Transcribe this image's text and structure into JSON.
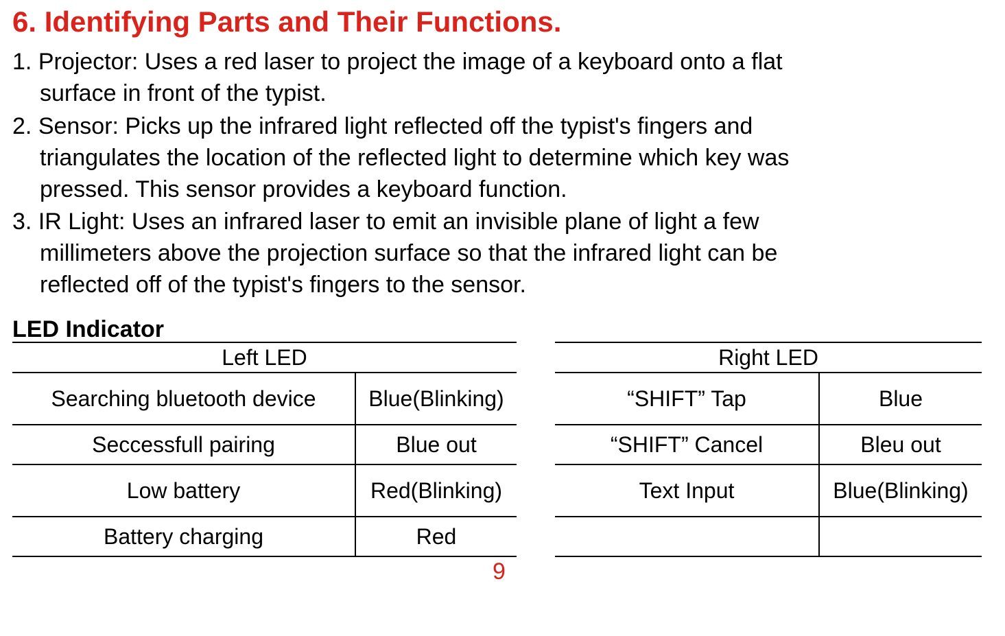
{
  "heading": "6. Identifying Parts and Their Functions.",
  "items": [
    {
      "num": "1. ",
      "line1": "Projector: Uses a red laser to project the image of a keyboard onto a flat",
      "line2": "surface in front of the typist."
    },
    {
      "num": "2. ",
      "line1": "Sensor: Picks up the infrared light reflected off the typist's fingers and",
      "line2": "triangulates the location of the reflected light to determine which key was",
      "line3": "pressed. This sensor provides a keyboard function."
    },
    {
      "num": "3. ",
      "line1": "IR Light: Uses an infrared laser to emit an invisible plane of light a few",
      "line2": "millimeters above the projection surface so that the infrared light can be",
      "line3": "reflected off of the typist's fingers to the sensor."
    }
  ],
  "subheading": "LED Indicator",
  "tables": {
    "left": {
      "header": "Left  LED",
      "rows": [
        {
          "c1": "Searching bluetooth device",
          "c2": "Blue(Blinking)",
          "tall": true,
          "wrap2": true
        },
        {
          "c1": "Seccessfull pairing",
          "c2": "Blue out",
          "tall": false
        },
        {
          "c1": "Low battery",
          "c2": "Red(Blinking)",
          "tall": true
        },
        {
          "c1": "Battery charging",
          "c2": "Red",
          "tall": false
        }
      ]
    },
    "right": {
      "header": "Right  LED",
      "rows": [
        {
          "c1": "“SHIFT” Tap",
          "c2": "Blue",
          "tall": true
        },
        {
          "c1": "“SHIFT” Cancel",
          "c2": "Bleu out",
          "tall": false
        },
        {
          "c1": "Text Input",
          "c2": "Blue(Blinking)",
          "tall": true,
          "wrap2": true
        },
        {
          "c1": "",
          "c2": "",
          "tall": false
        }
      ]
    }
  },
  "page_number": "9",
  "colors": {
    "heading": "#d8241c",
    "text": "#000000",
    "background": "#ffffff",
    "border": "#000000"
  },
  "typography": {
    "heading_fontsize": 42,
    "body_fontsize": 34,
    "table_fontsize": 32
  }
}
